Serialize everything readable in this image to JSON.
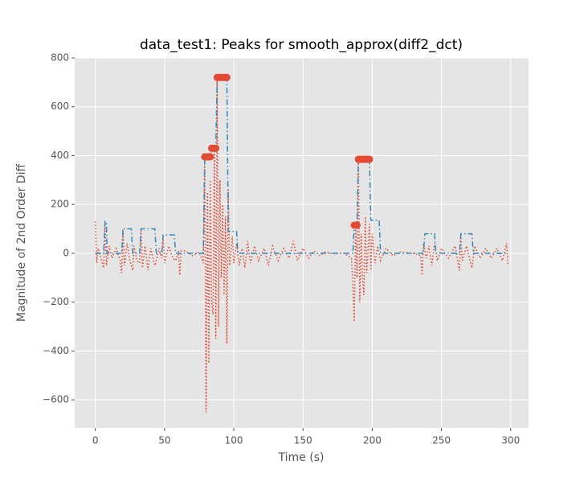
{
  "chart_data": {
    "type": "line",
    "title": "data_test1: Peaks for smooth_approx(diff2_dct)",
    "xlabel": "Time (s)",
    "ylabel": "Magnitude of 2nd Order Diff",
    "xlim": [
      -14.9,
      312.9
    ],
    "ylim": [
      -715,
      800
    ],
    "xticks": [
      0,
      50,
      100,
      150,
      200,
      250,
      300
    ],
    "yticks": [
      {
        "value": -600,
        "label": "−600"
      },
      {
        "value": -400,
        "label": "−400"
      },
      {
        "value": -200,
        "label": "−200"
      },
      0,
      200,
      400,
      600,
      800
    ],
    "grid": true,
    "series": [
      {
        "color": "#e24a33",
        "style": "dotted",
        "x": [
          0,
          1,
          2,
          4,
          6,
          7,
          8,
          10,
          12,
          15,
          18,
          19,
          20,
          21,
          23,
          25,
          27,
          28,
          30,
          32,
          33,
          34,
          36,
          38,
          40,
          43,
          44,
          46,
          48,
          49,
          50,
          53,
          56,
          58,
          60,
          61,
          62,
          65,
          70,
          75,
          78,
          79,
          80,
          81,
          82,
          83,
          84,
          85,
          86,
          87,
          88,
          89,
          90,
          91,
          92,
          93,
          94,
          95,
          96,
          97,
          99,
          100,
          102,
          104,
          106,
          108,
          110,
          112,
          115,
          118,
          122,
          125,
          128,
          132,
          136,
          140,
          143,
          146,
          150,
          154,
          158,
          162,
          166,
          170,
          180,
          185,
          186,
          187,
          188,
          189,
          190,
          191,
          192,
          193,
          194,
          195,
          196,
          198,
          199,
          200,
          202,
          204,
          206,
          210,
          215,
          220,
          230,
          235,
          236,
          237,
          239,
          241,
          243,
          245,
          247,
          250,
          255,
          260,
          262,
          263,
          264,
          265,
          268,
          272,
          274,
          278,
          282,
          286,
          290,
          294,
          297,
          298
        ],
        "values": [
          130,
          -40,
          20,
          -20,
          -60,
          130,
          -50,
          30,
          -20,
          20,
          -30,
          -80,
          100,
          -50,
          40,
          -30,
          -70,
          30,
          -30,
          -40,
          100,
          -60,
          30,
          -70,
          20,
          -50,
          -30,
          20,
          -20,
          75,
          -40,
          30,
          -20,
          -30,
          10,
          -90,
          10,
          10,
          -10,
          5,
          -40,
          400,
          -650,
          250,
          -450,
          300,
          -200,
          -250,
          430,
          -350,
          720,
          -300,
          300,
          -100,
          200,
          -170,
          150,
          -370,
          260,
          -50,
          70,
          -40,
          40,
          -50,
          20,
          -60,
          50,
          -40,
          30,
          -30,
          20,
          -50,
          30,
          -30,
          20,
          -20,
          50,
          -30,
          20,
          -20,
          10,
          -10,
          5,
          0,
          0,
          -20,
          -120,
          -280,
          120,
          -100,
          385,
          -200,
          80,
          -100,
          -170,
          150,
          -80,
          120,
          -70,
          80,
          -40,
          30,
          -30,
          20,
          -10,
          5,
          0,
          -10,
          -90,
          40,
          -20,
          30,
          -50,
          40,
          -30,
          20,
          -20,
          30,
          -40,
          -70,
          80,
          -30,
          30,
          -60,
          30,
          -20,
          20,
          -20,
          20,
          -30,
          40,
          -50
        ]
      },
      {
        "color": "#348abd",
        "style": "dashdot",
        "x": [
          0,
          6,
          7,
          8,
          8.5,
          19,
          20,
          26,
          27,
          32,
          33,
          43,
          44,
          48,
          49,
          57,
          58,
          78,
          79,
          83,
          84,
          87,
          88,
          95,
          96,
          102,
          103,
          186,
          187,
          189,
          190,
          198,
          199,
          205,
          206,
          237,
          238,
          245,
          246,
          263,
          264,
          272,
          273,
          298
        ],
        "values": [
          0,
          0,
          130,
          130,
          0,
          0,
          100,
          100,
          0,
          0,
          100,
          100,
          0,
          0,
          75,
          75,
          0,
          0,
          395,
          395,
          430,
          430,
          720,
          720,
          90,
          90,
          0,
          0,
          115,
          115,
          385,
          385,
          135,
          135,
          0,
          0,
          80,
          80,
          0,
          0,
          80,
          80,
          0,
          0
        ]
      },
      {
        "color": "#e24a33",
        "style": "marker",
        "x": [
          79,
          80,
          81,
          82,
          83,
          84,
          85,
          86,
          87,
          88,
          89,
          90,
          91,
          92,
          93,
          94,
          95,
          187,
          188,
          189,
          190,
          191,
          192,
          193,
          194,
          195,
          196,
          197,
          198
        ],
        "values": [
          395,
          395,
          395,
          395,
          395,
          430,
          430,
          430,
          430,
          720,
          720,
          720,
          720,
          720,
          720,
          720,
          720,
          115,
          115,
          115,
          385,
          385,
          385,
          385,
          385,
          385,
          385,
          385,
          385
        ]
      }
    ]
  }
}
